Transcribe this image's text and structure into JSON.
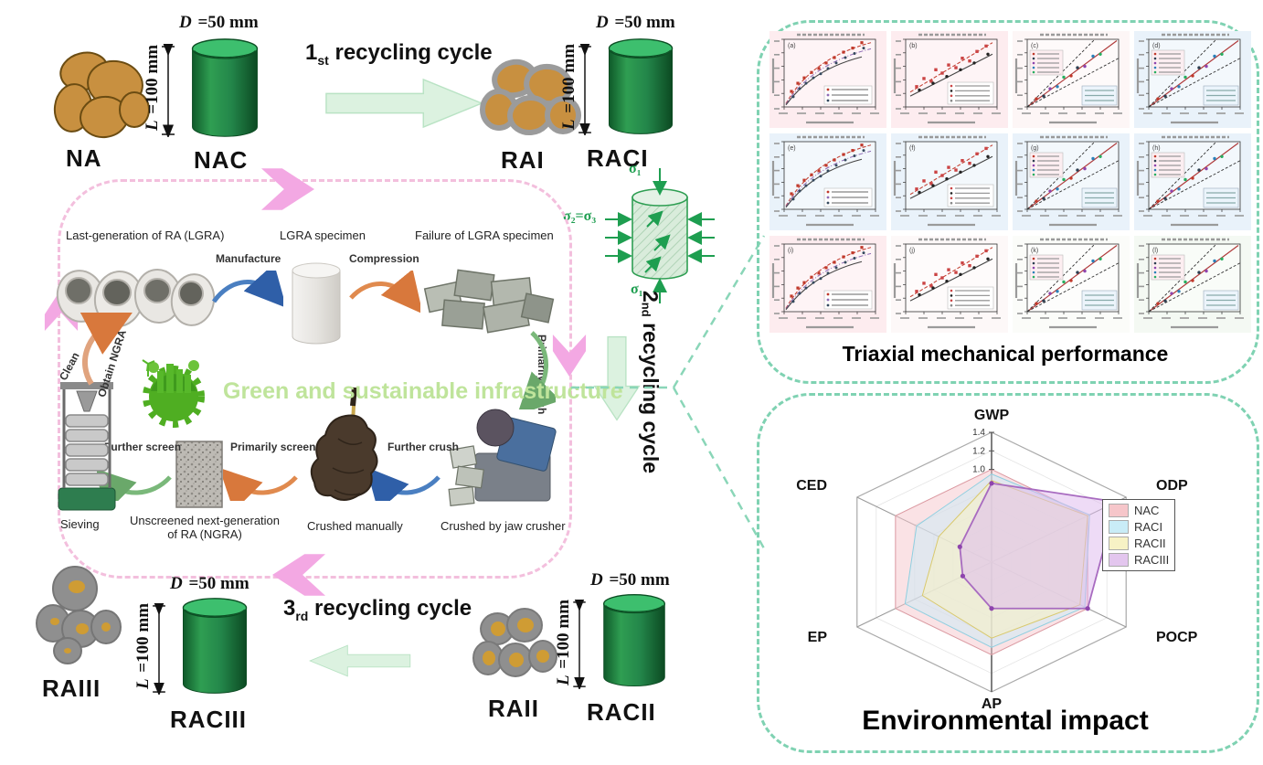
{
  "labels": {
    "na": "NA",
    "nac": "NAC",
    "rai": "RAI",
    "raci": "RACI",
    "raii": "RAII",
    "racii": "RACII",
    "raiii": "RAIII",
    "raciii": "RACIII"
  },
  "dims": {
    "d_sym": "D",
    "d_val": " =50 mm",
    "l_sym": "L",
    "l_val": " =100 mm"
  },
  "cycles": {
    "c1": {
      "num": "1",
      "ord": "st",
      "rest": " recycling cycle"
    },
    "c2": {
      "num": "2",
      "ord": "nd",
      "rest": " recycling cycle"
    },
    "c3": {
      "num": "3",
      "ord": "rd",
      "rest": " recycling cycle"
    }
  },
  "triaxial": {
    "sigma_top": "σ₁",
    "sigma_side": "σ₂=σ₃",
    "sigma_bottom": "σ₁"
  },
  "inner_cycle": {
    "lgra_label": "Last-generation of RA (LGRA)",
    "manufacture": "Manufacture",
    "specimen_label": "LGRA specimen",
    "compression": "Compression",
    "failure_label": "Failure of LGRA specimen",
    "primarily_crush": "Primarily crush",
    "jaw_label": "Crushed by jaw crusher",
    "further_crush": "Further crush",
    "manual_label": "Crushed manually",
    "primarily_screen": "Primarily screen",
    "ngra_label_1": "Unscreened next-generation",
    "ngra_label_2": "of RA (NGRA)",
    "further_screen": "Further screen",
    "sieving_label": "Sieving",
    "clean": "Clean",
    "obtain": "Obtain NGRA",
    "slogan": "Green and sustainable infrastructure"
  },
  "panels": {
    "triaxial_title": "Triaxial mechanical performance",
    "env_title": "Environmental impact"
  },
  "colors": {
    "magenta_arrow": "#f3a8e3",
    "pink_border": "#f3bfdd",
    "teal_border": "#7fd2b2",
    "green_block_arrow": "#dcf2e0",
    "sigma_green": "#1e9e50",
    "slogan_green": "#bfe49b",
    "cylinder_green": "#2e9e52"
  },
  "chart_data": [
    {
      "type": "scatter",
      "title": "Triaxial mechanical performance",
      "layout": "4 columns x 3 rows of small triaxial model-comparison subplots",
      "subplots": [
        {
          "label": "(a)",
          "bg": "#fdecef",
          "kind": "fit"
        },
        {
          "label": "(b)",
          "bg": "#fdecef",
          "kind": "scatter"
        },
        {
          "label": "(c)",
          "bg": "#fdf6f6",
          "kind": "cal"
        },
        {
          "label": "(d)",
          "bg": "#e9f2fa",
          "kind": "cal"
        },
        {
          "label": "(e)",
          "bg": "#e9f2fa",
          "kind": "fit"
        },
        {
          "label": "(f)",
          "bg": "#e9f2fa",
          "kind": "scatter"
        },
        {
          "label": "(g)",
          "bg": "#e9f2fa",
          "kind": "cal"
        },
        {
          "label": "(h)",
          "bg": "#e9f2fa",
          "kind": "cal"
        },
        {
          "label": "(i)",
          "bg": "#fdecef",
          "kind": "fit"
        },
        {
          "label": "(j)",
          "bg": "#fdf8f8",
          "kind": "scatter"
        },
        {
          "label": "(k)",
          "bg": "#fbfcf9",
          "kind": "cal"
        },
        {
          "label": "(l)",
          "bg": "#f4f9f3",
          "kind": "cal"
        }
      ],
      "fit_pts": [
        [
          0.08,
          0.18
        ],
        [
          0.15,
          0.3
        ],
        [
          0.22,
          0.38
        ],
        [
          0.3,
          0.46
        ],
        [
          0.38,
          0.52
        ],
        [
          0.46,
          0.6
        ],
        [
          0.55,
          0.68
        ],
        [
          0.65,
          0.76
        ],
        [
          0.75,
          0.82
        ],
        [
          0.85,
          0.9
        ]
      ],
      "scatter_red": [
        [
          0.12,
          0.3
        ],
        [
          0.2,
          0.42
        ],
        [
          0.28,
          0.38
        ],
        [
          0.33,
          0.55
        ],
        [
          0.4,
          0.5
        ],
        [
          0.47,
          0.62
        ],
        [
          0.55,
          0.58
        ],
        [
          0.62,
          0.72
        ],
        [
          0.7,
          0.68
        ],
        [
          0.78,
          0.82
        ],
        [
          0.88,
          0.9
        ]
      ],
      "scatter_black": [
        [
          0.15,
          0.25
        ],
        [
          0.3,
          0.35
        ],
        [
          0.45,
          0.45
        ],
        [
          0.6,
          0.55
        ],
        [
          0.75,
          0.65
        ],
        [
          0.9,
          0.78
        ]
      ],
      "cal_pts": [
        [
          0.1,
          0.12
        ],
        [
          0.18,
          0.16
        ],
        [
          0.25,
          0.27
        ],
        [
          0.33,
          0.3
        ],
        [
          0.4,
          0.44
        ],
        [
          0.48,
          0.46
        ],
        [
          0.55,
          0.58
        ],
        [
          0.63,
          0.6
        ],
        [
          0.72,
          0.75
        ],
        [
          0.8,
          0.78
        ]
      ]
    },
    {
      "type": "radar",
      "title": "Environmental impact",
      "axes": [
        "GWP",
        "ODP",
        "POCP",
        "AP",
        "EP",
        "CED"
      ],
      "rmax": 1.4,
      "ticks": [
        1.0,
        1.2,
        1.4
      ],
      "legend_position": "right",
      "legend": [
        "NAC",
        "RACI",
        "RACII",
        "RACIII"
      ],
      "series": [
        {
          "name": "NAC",
          "swatch": "#f6c6ca",
          "fill": "rgba(246,198,203,0.50)",
          "stroke": "#dc9aa2",
          "values": [
            1.0,
            1.0,
            1.0,
            1.0,
            1.0,
            1.0
          ]
        },
        {
          "name": "RACI",
          "swatch": "#c9ecf7",
          "fill": "rgba(201,236,247,0.50)",
          "stroke": "#8fcfe0",
          "values": [
            0.95,
            1.02,
            0.97,
            0.92,
            0.9,
            0.78
          ]
        },
        {
          "name": "RACII",
          "swatch": "#f7f2c5",
          "fill": "rgba(247,242,197,0.55)",
          "stroke": "#d9c96d",
          "values": [
            0.88,
            1.0,
            0.92,
            0.82,
            0.72,
            0.55
          ]
        },
        {
          "name": "RACIII",
          "swatch": "#e3c6ee",
          "fill": "rgba(222,183,238,0.50)",
          "stroke": "#a86bc0",
          "values": [
            0.85,
            1.3,
            1.0,
            0.5,
            0.3,
            0.33
          ]
        }
      ]
    }
  ]
}
